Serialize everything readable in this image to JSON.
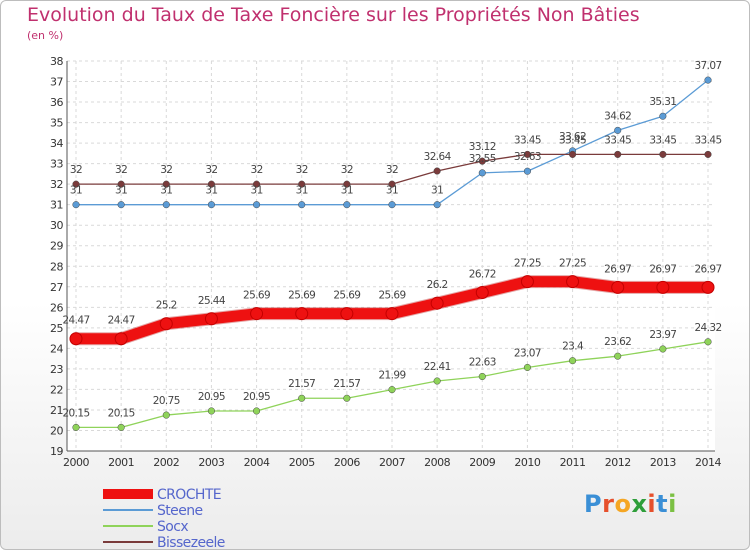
{
  "title": "Evolution du Taux de Taxe Foncière sur les Propriétés Non Bâties",
  "unit_label": "(en %)",
  "logo": {
    "text": "Proxiti",
    "letters": [
      "P",
      "r",
      "o",
      "x",
      "i",
      "t",
      "i"
    ],
    "colors": [
      "#3a8fd6",
      "#e6502c",
      "#f5a623",
      "#2e9e3a",
      "#e6502c",
      "#3a8fd6",
      "#7bc043"
    ]
  },
  "chart_data": {
    "type": "line",
    "x": [
      "2000",
      "2001",
      "2002",
      "2003",
      "2004",
      "2005",
      "2006",
      "2007",
      "2008",
      "2009",
      "2010",
      "2011",
      "2012",
      "2013",
      "2014"
    ],
    "ylim": [
      19,
      38
    ],
    "yticks": [
      19,
      20,
      21,
      22,
      23,
      24,
      25,
      26,
      27,
      28,
      29,
      30,
      31,
      32,
      33,
      34,
      35,
      36,
      37,
      38
    ],
    "grid": true,
    "legend_position": "bottom-left",
    "series": [
      {
        "name": "CROCHTE",
        "color": "#ee1111",
        "width": 11,
        "values": [
          24.47,
          24.47,
          25.2,
          25.44,
          25.69,
          25.69,
          25.69,
          25.69,
          26.2,
          26.72,
          27.25,
          27.25,
          26.97,
          26.97,
          26.97
        ],
        "labels": [
          "24.47",
          "24.47",
          "25.2",
          "25.44",
          "25.69",
          "25.69",
          "25.69",
          "25.69",
          "26.2",
          "26.72",
          "27.25",
          "27.25",
          "26.97",
          "26.97",
          "26.97"
        ]
      },
      {
        "name": "Steene",
        "color": "#5b9bd5",
        "width": 1.3,
        "values": [
          31,
          31,
          31,
          31,
          31,
          31,
          31,
          31,
          31,
          32.55,
          32.63,
          33.62,
          34.62,
          35.31,
          37.07
        ],
        "labels": [
          "31",
          "31",
          "31",
          "31",
          "31",
          "31",
          "31",
          "31",
          "31",
          "32.55",
          "32.63",
          "33.62",
          "34.62",
          "35.31",
          "37.07"
        ]
      },
      {
        "name": "Socx",
        "color": "#8fd35a",
        "width": 1.3,
        "values": [
          20.15,
          20.15,
          20.75,
          20.95,
          20.95,
          21.57,
          21.57,
          21.99,
          22.41,
          22.63,
          23.07,
          23.4,
          23.62,
          23.97,
          24.32
        ],
        "labels": [
          "20.15",
          "20.15",
          "20.75",
          "20.95",
          "20.95",
          "21.57",
          "21.57",
          "21.99",
          "22.41",
          "22.63",
          "23.07",
          "23.4",
          "23.62",
          "23.97",
          "24.32"
        ]
      },
      {
        "name": "Bissezeele",
        "color": "#7a3b3b",
        "width": 1.3,
        "values": [
          32,
          32,
          32,
          32,
          32,
          32,
          32,
          32,
          32.64,
          33.12,
          33.45,
          33.45,
          33.45,
          33.45,
          33.45
        ],
        "labels": [
          "32",
          "32",
          "32",
          "32",
          "32",
          "32",
          "32",
          "32",
          "32.64",
          "33.12",
          "33.45",
          "33.45",
          "33.45",
          "33.45",
          "33.45"
        ]
      }
    ]
  }
}
